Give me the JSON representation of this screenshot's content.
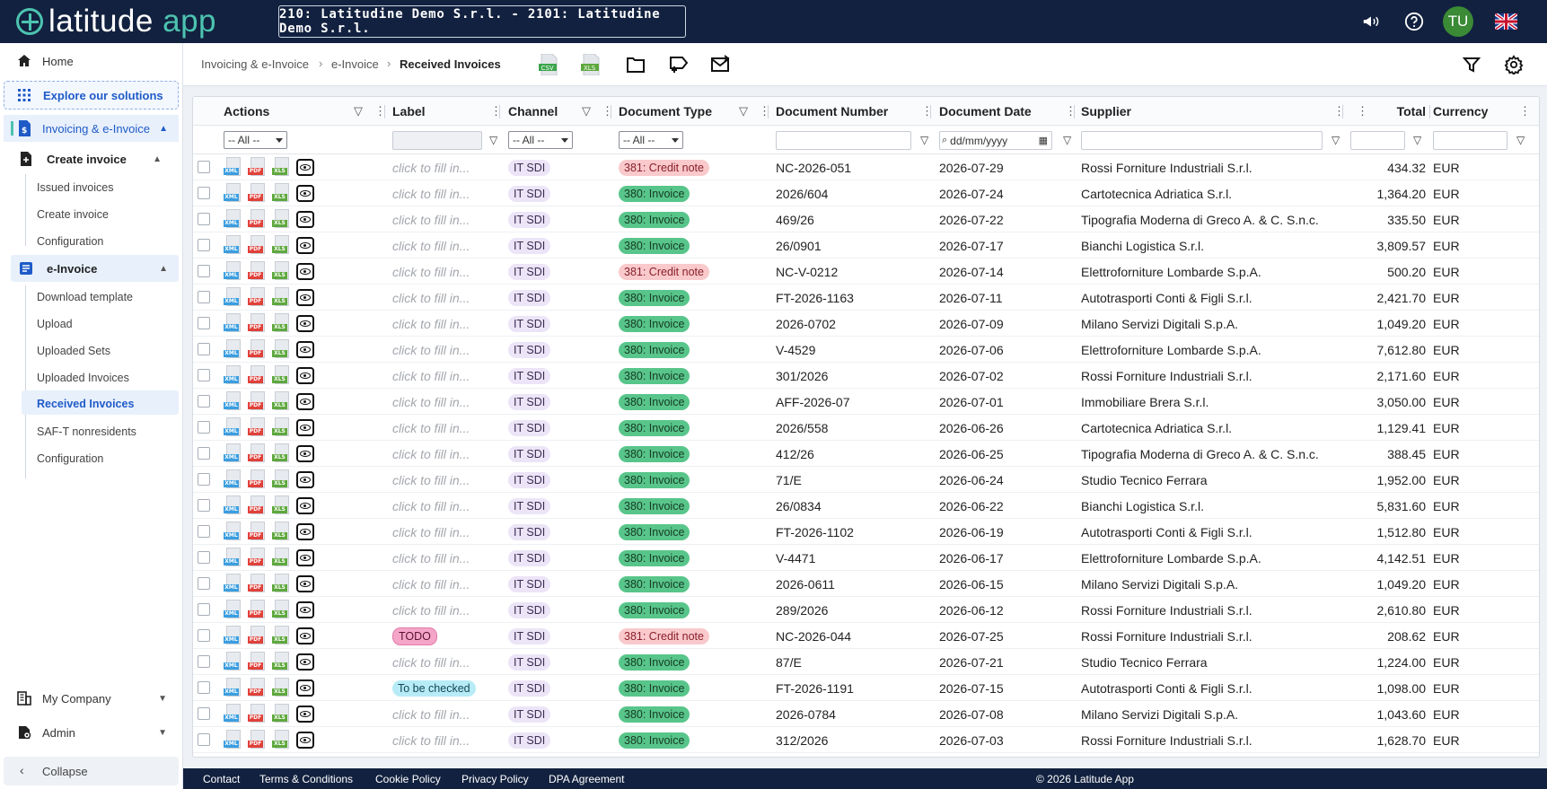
{
  "header": {
    "logo_main": "latitude",
    "logo_accent": " app",
    "company": "210: Latitudine Demo S.r.l. - 2101: Latitudine Demo S.r.l.",
    "avatar": "TU"
  },
  "sidebar": {
    "home": "Home",
    "explore": "Explore our solutions",
    "invoicing": "Invoicing & e-Invoice",
    "create_invoice": "Create invoice",
    "issued_invoices": "Issued invoices",
    "create_invoice_sub": "Create invoice",
    "configuration": "Configuration",
    "einvoice": "e-Invoice",
    "download_template": "Download template",
    "upload": "Upload",
    "uploaded_sets": "Uploaded Sets",
    "uploaded_invoices": "Uploaded Invoices",
    "received_invoices": "Received Invoices",
    "saft": "SAF-T nonresidents",
    "configuration2": "Configuration",
    "my_company": "My Company",
    "admin": "Admin",
    "collapse": "Collapse"
  },
  "breadcrumb": {
    "c1": "Invoicing & e-Invoice",
    "c2": "e-Invoice",
    "c3": "Received Invoices"
  },
  "toolbar": {
    "csv": "CSV",
    "xls": "XLS"
  },
  "columns": {
    "actions": "Actions",
    "label": "Label",
    "channel": "Channel",
    "doc_type": "Document Type",
    "doc_number": "Document Number",
    "doc_date": "Document Date",
    "supplier": "Supplier",
    "total": "Total",
    "currency": "Currency"
  },
  "filters": {
    "all": "-- All --",
    "date_placeholder": "dd/mm/yyyy"
  },
  "icons": {
    "xml": "XML",
    "pdf": "PDF",
    "xls": "XLS"
  },
  "placeholder_label": "click to fill in...",
  "rows": [
    {
      "label": "",
      "channel": "IT SDI",
      "type": "381: Credit note",
      "number": "NC-2026-051",
      "date": "2026-07-29",
      "supplier": "Rossi Forniture Industriali S.r.l.",
      "total": "434.32",
      "currency": "EUR"
    },
    {
      "label": "",
      "channel": "IT SDI",
      "type": "380: Invoice",
      "number": "2026/604",
      "date": "2026-07-24",
      "supplier": "Cartotecnica Adriatica S.r.l.",
      "total": "1,364.20",
      "currency": "EUR"
    },
    {
      "label": "",
      "channel": "IT SDI",
      "type": "380: Invoice",
      "number": "469/26",
      "date": "2026-07-22",
      "supplier": "Tipografia Moderna di Greco A. & C. S.n.c.",
      "total": "335.50",
      "currency": "EUR"
    },
    {
      "label": "",
      "channel": "IT SDI",
      "type": "380: Invoice",
      "number": "26/0901",
      "date": "2026-07-17",
      "supplier": "Bianchi Logistica S.r.l.",
      "total": "3,809.57",
      "currency": "EUR"
    },
    {
      "label": "",
      "channel": "IT SDI",
      "type": "381: Credit note",
      "number": "NC-V-0212",
      "date": "2026-07-14",
      "supplier": "Elettroforniture Lombarde S.p.A.",
      "total": "500.20",
      "currency": "EUR"
    },
    {
      "label": "",
      "channel": "IT SDI",
      "type": "380: Invoice",
      "number": "FT-2026-1163",
      "date": "2026-07-11",
      "supplier": "Autotrasporti Conti & Figli S.r.l.",
      "total": "2,421.70",
      "currency": "EUR"
    },
    {
      "label": "",
      "channel": "IT SDI",
      "type": "380: Invoice",
      "number": "2026-0702",
      "date": "2026-07-09",
      "supplier": "Milano Servizi Digitali S.p.A.",
      "total": "1,049.20",
      "currency": "EUR"
    },
    {
      "label": "",
      "channel": "IT SDI",
      "type": "380: Invoice",
      "number": "V-4529",
      "date": "2026-07-06",
      "supplier": "Elettroforniture Lombarde S.p.A.",
      "total": "7,612.80",
      "currency": "EUR"
    },
    {
      "label": "",
      "channel": "IT SDI",
      "type": "380: Invoice",
      "number": "301/2026",
      "date": "2026-07-02",
      "supplier": "Rossi Forniture Industriali S.r.l.",
      "total": "2,171.60",
      "currency": "EUR"
    },
    {
      "label": "",
      "channel": "IT SDI",
      "type": "380: Invoice",
      "number": "AFF-2026-07",
      "date": "2026-07-01",
      "supplier": "Immobiliare Brera S.r.l.",
      "total": "3,050.00",
      "currency": "EUR"
    },
    {
      "label": "",
      "channel": "IT SDI",
      "type": "380: Invoice",
      "number": "2026/558",
      "date": "2026-06-26",
      "supplier": "Cartotecnica Adriatica S.r.l.",
      "total": "1,129.41",
      "currency": "EUR"
    },
    {
      "label": "",
      "channel": "IT SDI",
      "type": "380: Invoice",
      "number": "412/26",
      "date": "2026-06-25",
      "supplier": "Tipografia Moderna di Greco A. & C. S.n.c.",
      "total": "388.45",
      "currency": "EUR"
    },
    {
      "label": "",
      "channel": "IT SDI",
      "type": "380: Invoice",
      "number": "71/E",
      "date": "2026-06-24",
      "supplier": "Studio Tecnico Ferrara",
      "total": "1,952.00",
      "currency": "EUR"
    },
    {
      "label": "",
      "channel": "IT SDI",
      "type": "380: Invoice",
      "number": "26/0834",
      "date": "2026-06-22",
      "supplier": "Bianchi Logistica S.r.l.",
      "total": "5,831.60",
      "currency": "EUR"
    },
    {
      "label": "",
      "channel": "IT SDI",
      "type": "380: Invoice",
      "number": "FT-2026-1102",
      "date": "2026-06-19",
      "supplier": "Autotrasporti Conti & Figli S.r.l.",
      "total": "1,512.80",
      "currency": "EUR"
    },
    {
      "label": "",
      "channel": "IT SDI",
      "type": "380: Invoice",
      "number": "V-4471",
      "date": "2026-06-17",
      "supplier": "Elettroforniture Lombarde S.p.A.",
      "total": "4,142.51",
      "currency": "EUR"
    },
    {
      "label": "",
      "channel": "IT SDI",
      "type": "380: Invoice",
      "number": "2026-0611",
      "date": "2026-06-15",
      "supplier": "Milano Servizi Digitali S.p.A.",
      "total": "1,049.20",
      "currency": "EUR"
    },
    {
      "label": "",
      "channel": "IT SDI",
      "type": "380: Invoice",
      "number": "289/2026",
      "date": "2026-06-12",
      "supplier": "Rossi Forniture Industriali S.r.l.",
      "total": "2,610.80",
      "currency": "EUR"
    },
    {
      "label": "TODO",
      "channel": "IT SDI",
      "type": "381: Credit note",
      "number": "NC-2026-044",
      "date": "2026-07-25",
      "supplier": "Rossi Forniture Industriali S.r.l.",
      "total": "208.62",
      "currency": "EUR"
    },
    {
      "label": "",
      "channel": "IT SDI",
      "type": "380: Invoice",
      "number": "87/E",
      "date": "2026-07-21",
      "supplier": "Studio Tecnico Ferrara",
      "total": "1,224.00",
      "currency": "EUR"
    },
    {
      "label": "To be checked",
      "channel": "IT SDI",
      "type": "380: Invoice",
      "number": "FT-2026-1191",
      "date": "2026-07-15",
      "supplier": "Autotrasporti Conti & Figli S.r.l.",
      "total": "1,098.00",
      "currency": "EUR"
    },
    {
      "label": "",
      "channel": "IT SDI",
      "type": "380: Invoice",
      "number": "2026-0784",
      "date": "2026-07-08",
      "supplier": "Milano Servizi Digitali S.p.A.",
      "total": "1,043.60",
      "currency": "EUR"
    },
    {
      "label": "",
      "channel": "IT SDI",
      "type": "380: Invoice",
      "number": "312/2026",
      "date": "2026-07-03",
      "supplier": "Rossi Forniture Industriali S.r.l.",
      "total": "1,628.70",
      "currency": "EUR"
    }
  ],
  "footer": {
    "contact": "Contact",
    "terms": "Terms & Conditions",
    "cookie": "Cookie Policy",
    "privacy": "Privacy Policy",
    "dpa": "DPA Agreement",
    "copyright": "© 2026 Latitude App"
  },
  "colors": {
    "navy": "#12213f",
    "teal": "#4cc3b0",
    "accent_blue": "#1f5bc8",
    "invoice_green": "#58c58a",
    "credit_red": "#f9c9cc"
  }
}
